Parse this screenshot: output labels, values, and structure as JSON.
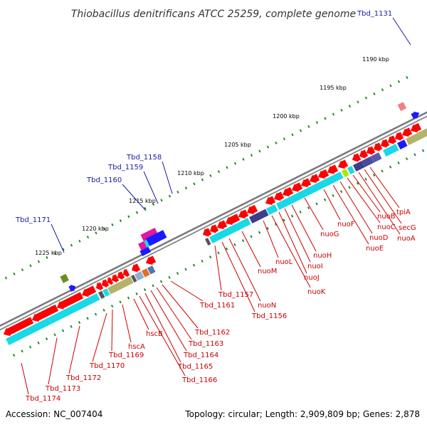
{
  "title": "Thiobacillus denitrificans ATCC 25259, complete genome",
  "footer": {
    "accession": "Accession: NC_007404",
    "summary": "Topology: circular; Length: 2,909,809 bp; Genes: 2,878"
  },
  "scale_labels": [
    "1190 kbp",
    "1195 kbp",
    "1200 kbp",
    "1205 kbp",
    "1210 kbp",
    "1215 kbp",
    "1220 kbp",
    "1225 kbp"
  ],
  "outer_genes": [
    "Tbd_1131",
    "Tbd_1158",
    "Tbd_1159",
    "Tbd_1160",
    "Tbd_1171"
  ],
  "inner_genes": [
    "tpiA",
    "secG",
    "nuoA",
    "nuoB",
    "nuoC",
    "nuoD",
    "nuoE",
    "nuoF",
    "nuoG",
    "nuoH",
    "nuoI",
    "nuoJ",
    "nuoK",
    "nuoL",
    "nuoM",
    "nuoN",
    "Tbd_1156",
    "Tbd_1157",
    "Tbd_1161",
    "Tbd_1162",
    "Tbd_1163",
    "Tbd_1164",
    "Tbd_1165",
    "Tbd_1166",
    "hscB",
    "hscA",
    "Tbd_1169",
    "Tbd_1170",
    "Tbd_1172",
    "Tbd_1173",
    "Tbd_1174"
  ],
  "colors": {
    "backbone": "#777777",
    "gene_arrow": "#ff0000",
    "cds_cyan": "#1ad9e6",
    "cds_olive": "#b3b36b",
    "cds_navy": "#3d3d8a",
    "cds_blue": "#1a1aff",
    "cds_magenta": "#e0199e",
    "tick": "#228b22",
    "label_blue": "#1a1aa8",
    "label_red": "#cc0000"
  }
}
